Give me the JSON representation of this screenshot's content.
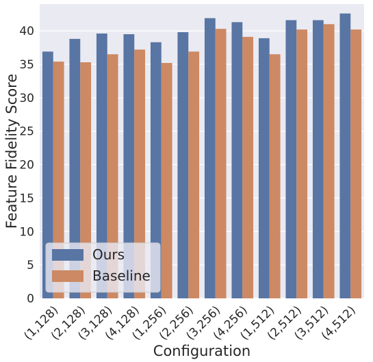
{
  "chart_data": {
    "type": "bar",
    "title": "",
    "xlabel": "Configuration",
    "ylabel": "Feature Fidelity Score",
    "ylim": [
      0,
      44
    ],
    "yticks": [
      "0",
      "5",
      "10",
      "15",
      "20",
      "25",
      "30",
      "35",
      "40"
    ],
    "grid": true,
    "legend_position": "lower-left",
    "categories": [
      "(1,128)",
      "(2,128)",
      "(3,128)",
      "(4,128)",
      "(1,256)",
      "(2,256)",
      "(3,256)",
      "(4,256)",
      "(1,512)",
      "(2,512)",
      "(3,512)",
      "(4,512)"
    ],
    "series": [
      {
        "name": "Ours",
        "color": "#5875a4",
        "values": [
          36.9,
          38.8,
          39.6,
          39.5,
          38.3,
          39.8,
          41.9,
          41.3,
          38.9,
          41.6,
          41.6,
          42.6
        ]
      },
      {
        "name": "Baseline",
        "color": "#cc8963",
        "values": [
          35.4,
          35.3,
          36.5,
          37.2,
          35.2,
          36.9,
          40.3,
          39.1,
          36.5,
          40.2,
          41.0,
          40.2
        ]
      }
    ]
  }
}
